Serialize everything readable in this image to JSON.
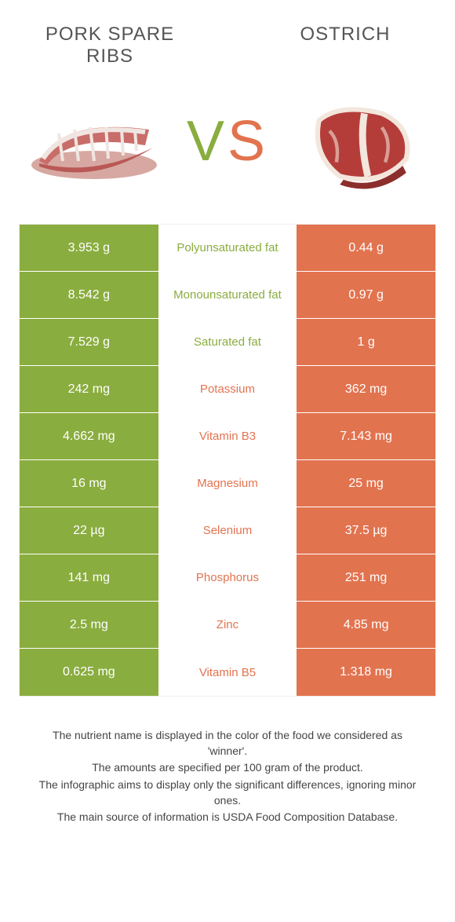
{
  "colors": {
    "left": "#8aad3f",
    "right": "#e2734f",
    "text": "#555"
  },
  "header": {
    "left_title": "Pork spare ribs",
    "right_title": "Ostrich",
    "vs_v": "V",
    "vs_s": "S"
  },
  "rows": [
    {
      "left": "3.953 g",
      "label": "Polyunsaturated fat",
      "right": "0.44 g",
      "winner": "left"
    },
    {
      "left": "8.542 g",
      "label": "Monounsaturated fat",
      "right": "0.97 g",
      "winner": "left"
    },
    {
      "left": "7.529 g",
      "label": "Saturated fat",
      "right": "1 g",
      "winner": "left"
    },
    {
      "left": "242 mg",
      "label": "Potassium",
      "right": "362 mg",
      "winner": "right"
    },
    {
      "left": "4.662 mg",
      "label": "Vitamin B3",
      "right": "7.143 mg",
      "winner": "right"
    },
    {
      "left": "16 mg",
      "label": "Magnesium",
      "right": "25 mg",
      "winner": "right"
    },
    {
      "left": "22 µg",
      "label": "Selenium",
      "right": "37.5 µg",
      "winner": "right"
    },
    {
      "left": "141 mg",
      "label": "Phosphorus",
      "right": "251 mg",
      "winner": "right"
    },
    {
      "left": "2.5 mg",
      "label": "Zinc",
      "right": "4.85 mg",
      "winner": "right"
    },
    {
      "left": "0.625 mg",
      "label": "Vitamin B5",
      "right": "1.318 mg",
      "winner": "right"
    }
  ],
  "footer": {
    "line1": "The nutrient name is displayed in the color of the food we considered as 'winner'.",
    "line2": "The amounts are specified per 100 gram of the product.",
    "line3": "The infographic aims to display only the significant differences, ignoring minor ones.",
    "line4": "The main source of information is USDA Food Composition Database."
  }
}
